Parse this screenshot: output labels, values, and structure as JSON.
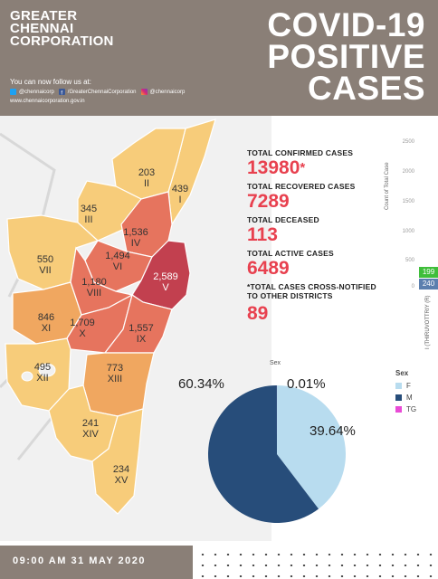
{
  "header": {
    "org_line1": "GREATER",
    "org_line2": "CHENNAI",
    "org_line3": "CORPORATION",
    "title_line1": "COVID-19",
    "title_line2": "POSITIVE",
    "title_line3": "CASES",
    "follow_text": "You can now follow us at:",
    "twitter_handle": "@chennaicorp",
    "facebook_handle": "/GreaterChennaiCorporation",
    "instagram_handle": "@chennaicorp",
    "website": "www.chennaicorporation.gov.in"
  },
  "zones": [
    {
      "count": "203",
      "numeral": "II"
    },
    {
      "count": "439",
      "numeral": "I"
    },
    {
      "count": "345",
      "numeral": "III"
    },
    {
      "count": "1,536",
      "numeral": "IV"
    },
    {
      "count": "550",
      "numeral": "VII"
    },
    {
      "count": "1,494",
      "numeral": "VI"
    },
    {
      "count": "2,589",
      "numeral": "V"
    },
    {
      "count": "1,180",
      "numeral": "VIII"
    },
    {
      "count": "846",
      "numeral": "XI"
    },
    {
      "count": "1,709",
      "numeral": "X"
    },
    {
      "count": "1,557",
      "numeral": "IX"
    },
    {
      "count": "495",
      "numeral": "XII"
    },
    {
      "count": "773",
      "numeral": "XIII"
    },
    {
      "count": "241",
      "numeral": "XIV"
    },
    {
      "count": "234",
      "numeral": "XV"
    }
  ],
  "stats": {
    "confirmed_label": "TOTAL CONFIRMED CASES",
    "confirmed_value": "13980",
    "confirmed_mark": "*",
    "recovered_label": "TOTAL RECOVERED CASES",
    "recovered_value": "7289",
    "deceased_label": "TOTAL DECEASED",
    "deceased_value": "113",
    "active_label": "TOTAL ACTIVE CASES",
    "active_value": "6489",
    "cross_label_line1": "*TOTAL CASES CROSS-NOTIFIED",
    "cross_label_line2": "TO OTHER DISTRICTS",
    "cross_value": "89"
  },
  "side_chart": {
    "axis_title": "Count of Total Case",
    "ticks": [
      "2500",
      "2000",
      "1500",
      "1000",
      "500",
      "0"
    ],
    "bar_green_value": "199",
    "bar_blue_value": "240",
    "bar_label": "I (THIRUVOTTRIY (R)"
  },
  "chart_data": {
    "type": "pie",
    "title": "Sex",
    "slices": [
      {
        "name": "F",
        "percent": 39.64,
        "label": "39.64%",
        "color": "#b8dcef"
      },
      {
        "name": "M",
        "percent": 60.34,
        "label": "60.34%",
        "color": "#274d7a"
      },
      {
        "name": "TG",
        "percent": 0.01,
        "label": "0.01%",
        "color": "#e94bd6"
      }
    ],
    "legend_title": "Sex",
    "legend_placement": "right"
  },
  "footer": {
    "timestamp": "09:00 AM 31 MAY 2020"
  },
  "colors": {
    "header_bg": "#8a7f77",
    "accent_red": "#e8414f",
    "zone_light": "#f7cc7a",
    "zone_mid": "#f0a760",
    "zone_dark": "#e6745e",
    "zone_darkest": "#c2404f"
  }
}
